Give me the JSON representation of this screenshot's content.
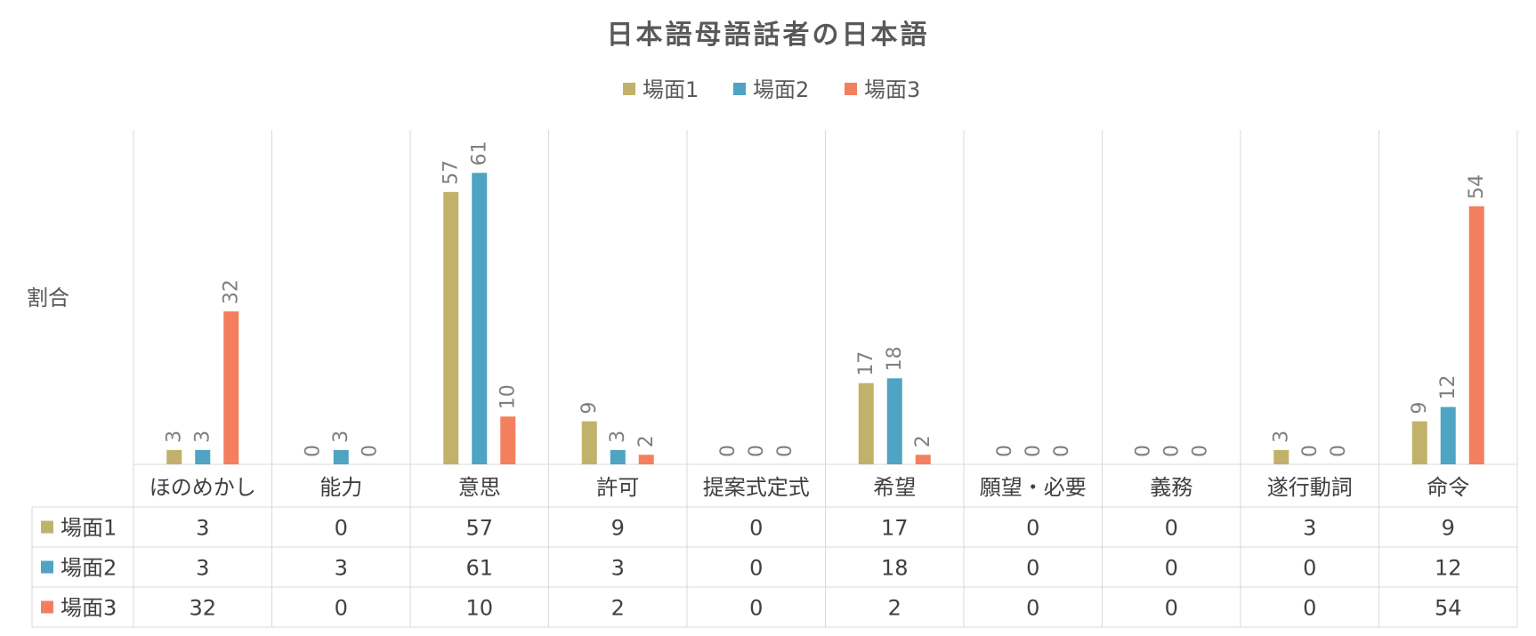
{
  "chart_data": {
    "type": "bar",
    "title": "日本語母語話者の日本語",
    "ylabel": "割合",
    "xlabel": "",
    "legend_position": "top",
    "categories": [
      "ほのめかし",
      "能力",
      "意思",
      "許可",
      "提案式定式",
      "希望",
      "願望・必要",
      "義務",
      "遂行動詞",
      "命令"
    ],
    "series": [
      {
        "name": "場面1",
        "color": "#C2B16A",
        "values": [
          3,
          0,
          57,
          9,
          0,
          17,
          0,
          0,
          3,
          9
        ]
      },
      {
        "name": "場面2",
        "color": "#4FA3C3",
        "values": [
          3,
          3,
          61,
          3,
          0,
          18,
          0,
          0,
          0,
          12
        ]
      },
      {
        "name": "場面3",
        "color": "#F47F5F",
        "values": [
          32,
          0,
          10,
          2,
          0,
          2,
          0,
          0,
          0,
          54
        ]
      }
    ],
    "data_labels": true,
    "data_table": true,
    "grid": false
  }
}
